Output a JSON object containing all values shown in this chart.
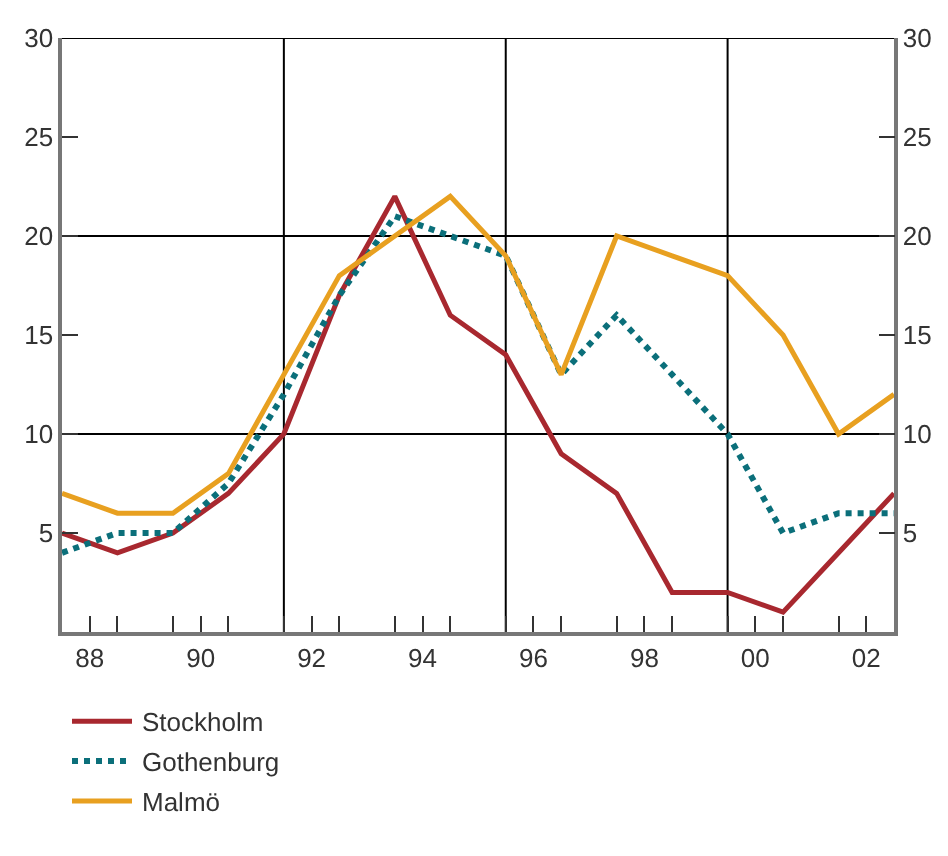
{
  "chart_data": {
    "type": "line",
    "x": [
      1987.5,
      1988.5,
      1989.5,
      1990.5,
      1991.5,
      1992.5,
      1993.5,
      1994.5,
      1995.5,
      1996.5,
      1997.5,
      1998.5,
      1999.5,
      2000.5,
      2001.5,
      2002.5
    ],
    "xlim": [
      1987.5,
      2002.5
    ],
    "xticks": [
      {
        "value": 1988,
        "label": "88"
      },
      {
        "value": 1990,
        "label": "90"
      },
      {
        "value": 1992,
        "label": "92"
      },
      {
        "value": 1994,
        "label": "94"
      },
      {
        "value": 1996,
        "label": "96"
      },
      {
        "value": 1998,
        "label": "98"
      },
      {
        "value": 2000,
        "label": "00"
      },
      {
        "value": 2002,
        "label": "02"
      },
      {
        "value": 1988.5,
        "label": null
      },
      {
        "value": 1989.5,
        "label": null
      },
      {
        "value": 1990.5,
        "label": null
      },
      {
        "value": 1991.5,
        "label": null
      },
      {
        "value": 1992.5,
        "label": null
      },
      {
        "value": 1993.5,
        "label": null
      },
      {
        "value": 1994.5,
        "label": null
      },
      {
        "value": 1995.5,
        "label": null
      },
      {
        "value": 1996.5,
        "label": null
      },
      {
        "value": 1997.5,
        "label": null
      },
      {
        "value": 1998.5,
        "label": null
      },
      {
        "value": 1999.5,
        "label": null
      },
      {
        "value": 2000.5,
        "label": null
      },
      {
        "value": 2001.5,
        "label": null
      }
    ],
    "ylim": [
      0,
      30
    ],
    "yticks": [
      5,
      10,
      15,
      20,
      25,
      30
    ],
    "y2lim": [
      0,
      30
    ],
    "y2ticks": [
      5,
      10,
      15,
      20,
      25,
      30
    ],
    "grid": true,
    "legend": "bottom left",
    "marker": "none",
    "series": [
      {
        "name": "Stockholm",
        "color": "#a8282f",
        "line_style": "solid",
        "values": [
          5,
          4,
          5,
          7,
          10,
          17,
          22,
          16,
          14,
          9,
          7,
          2,
          2,
          1,
          4,
          7
        ]
      },
      {
        "name": "Gothenburg",
        "color": "#0b6f7a",
        "line_style": "dotted",
        "values": [
          4,
          5,
          5,
          7.5,
          12,
          17,
          21,
          20,
          19,
          13,
          16,
          13,
          10,
          5,
          6,
          6
        ]
      },
      {
        "name": "Malmö",
        "color": "#e8a020",
        "line_style": "solid",
        "values": [
          7,
          6,
          6,
          8,
          13,
          18,
          20,
          22,
          19,
          13,
          20,
          19,
          18,
          15,
          10,
          12
        ]
      }
    ]
  }
}
